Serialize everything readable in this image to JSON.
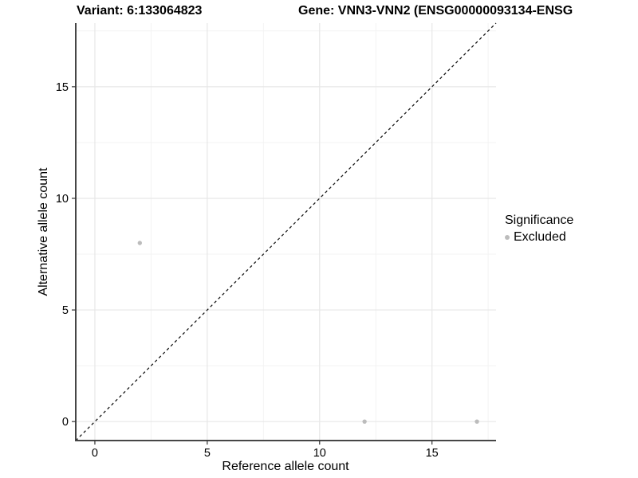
{
  "titles": {
    "variant": "Variant: 6:133064823",
    "gene": "Gene: VNN3-VNN2 (ENSG00000093134-ENSG"
  },
  "axes": {
    "x_label": "Reference allele count",
    "y_label": "Alternative allele count"
  },
  "legend": {
    "title": "Significance",
    "items": [
      {
        "label": "Excluded",
        "color": "#bcbcbc"
      }
    ]
  },
  "colors": {
    "background": "#ffffff",
    "point": "#bcbcbc",
    "axis_line": "#464646",
    "tick_mark": "#333333",
    "major_grid": "#e7e7e7",
    "minor_grid": "#f3f3f3",
    "identity_line": "#1a1a1a",
    "text": "#000000"
  },
  "chart_data": {
    "type": "scatter",
    "title_left": "Variant: 6:133064823",
    "title_right": "Gene: VNN3-VNN2 (ENSG00000093134-ENSG",
    "xlabel": "Reference allele count",
    "ylabel": "Alternative allele count",
    "series": [
      {
        "name": "Excluded",
        "color": "#bcbcbc",
        "points": [
          {
            "x": 2,
            "y": 8
          },
          {
            "x": 12,
            "y": 0
          },
          {
            "x": 17,
            "y": 0
          }
        ]
      }
    ],
    "reference_line": {
      "type": "identity y=x",
      "style": "dashed",
      "color": "#1a1a1a"
    },
    "xlim": [
      -0.85,
      17.85
    ],
    "ylim": [
      -0.85,
      17.85
    ],
    "x_major_ticks": [
      0,
      5,
      10,
      15
    ],
    "y_major_ticks": [
      0,
      5,
      10,
      15
    ],
    "x_minor_ticks": [
      2.5,
      7.5,
      12.5,
      17.5
    ],
    "y_minor_ticks": [
      2.5,
      7.5,
      12.5,
      17.5
    ],
    "grid": true,
    "legend_position": "right-center"
  }
}
